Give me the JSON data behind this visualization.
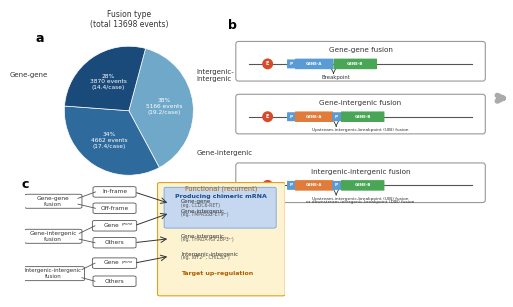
{
  "pie_title": "Fusion type\n(total 13698 events)",
  "pie_slices": [
    38,
    34,
    28
  ],
  "pie_labels": [
    "Gene-gene",
    "Intergenic-\nintergenic",
    "Gene-intergenic"
  ],
  "pie_colors": [
    "#6fa8c8",
    "#2e6a9c",
    "#1a4a7a"
  ],
  "pie_text": [
    "38%\n5166 events\n(19.2/case)",
    "34%\n4662 events\n(17.4/case)",
    "28%\n3870 events\n(14.4/case)"
  ],
  "panel_a_label": "a",
  "panel_b_label": "b",
  "panel_c_label": "c",
  "enhancer_color": "#d64c2a",
  "promoter_color": "#5b9bd5",
  "gene_a_color": "#e07b39",
  "gene_b_color": "#4aa657",
  "line_color": "#555555",
  "box_edge_color": "#999999",
  "text_color": "#333333"
}
